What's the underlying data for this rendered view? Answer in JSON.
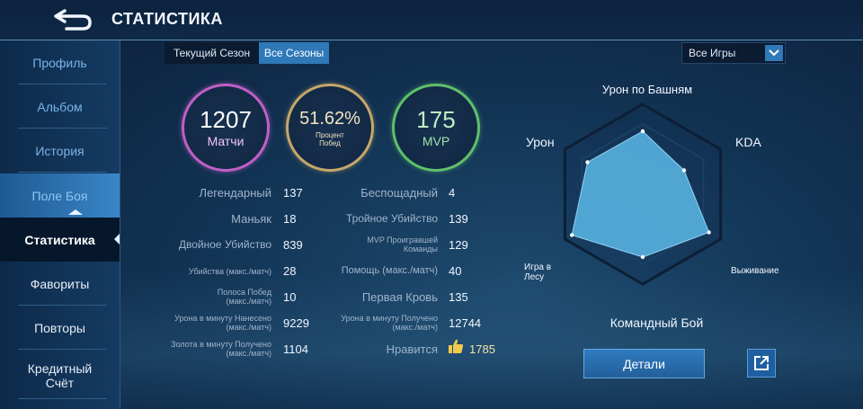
{
  "header": {
    "title": "СТАТИСТИКА"
  },
  "sidebar": {
    "items": [
      {
        "label": "Профиль"
      },
      {
        "label": "Альбом"
      },
      {
        "label": "История"
      },
      {
        "label": "Поле Боя"
      },
      {
        "label": "Статистика"
      },
      {
        "label": "Фавориты"
      },
      {
        "label": "Повторы"
      },
      {
        "label": "Кредитный Счёт"
      }
    ]
  },
  "tabs": {
    "current": "Текущий Сезон",
    "all": "Все Сезоны"
  },
  "filter": {
    "selected": "Все Игры"
  },
  "summary": {
    "matches": {
      "value": "1207",
      "label": "Матчи"
    },
    "winrate": {
      "value": "51.62%",
      "label": "Процент Побед"
    },
    "mvp": {
      "value": "175",
      "label": "MVP"
    }
  },
  "stats_left": [
    {
      "label": "Легендарный",
      "value": "137"
    },
    {
      "label": "Маньяк",
      "value": "18"
    },
    {
      "label": "Двойное Убийство",
      "value": "839"
    },
    {
      "label": "Убийства (макс./матч)",
      "value": "28"
    },
    {
      "label": "Полоса Побед (макс./матч)",
      "value": "10"
    },
    {
      "label": "Урона в минуту Нанесено (макс./матч)",
      "value": "9229"
    },
    {
      "label": "Золота в минуту Получено (макс./матч)",
      "value": "1104"
    }
  ],
  "stats_right": [
    {
      "label": "Беспощадный",
      "value": "4"
    },
    {
      "label": "Тройное Убийство",
      "value": "139"
    },
    {
      "label": "MVP Проигравшей Команды",
      "value": "129"
    },
    {
      "label": "Помощь (макс./матч)",
      "value": "40"
    },
    {
      "label": "Первая Кровь",
      "value": "135"
    },
    {
      "label": "Урона в минуту Получено (макс./матч)",
      "value": "12744"
    }
  ],
  "likes": {
    "label": "Нравится",
    "value": "1785"
  },
  "radar": {
    "axes": {
      "top": "Урон по Башням",
      "upper_right": "KDA",
      "lower_right": "Выживание",
      "bottom": "Командный Бой",
      "lower_left": "Игра в Лесу",
      "upper_left": "Урон"
    },
    "levels": {
      "top": 0.7,
      "upper_right": 0.53,
      "lower_right": 0.85,
      "bottom": 0.7,
      "lower_left": 0.91,
      "upper_left": 0.71
    },
    "colors": {
      "fill": "#5ab9e6",
      "outline": "#0c1f36",
      "ring": "#1c4468"
    }
  },
  "buttons": {
    "details": "Детали"
  },
  "colors": {
    "accent": "#2f79b8",
    "matches_ring": "#c05fc6",
    "winrate_ring": "#c6a76a",
    "mvp_ring": "#5fc06a"
  }
}
